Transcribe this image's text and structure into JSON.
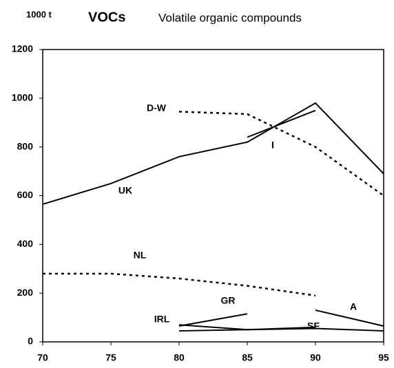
{
  "chart_data": {
    "type": "line",
    "title": "VOCs",
    "subtitle": "Volatile organic compounds",
    "y_label": "1000 t",
    "xlim": [
      70,
      95
    ],
    "xticks": [
      70,
      75,
      80,
      85,
      90,
      95
    ],
    "ylim": [
      0,
      1200
    ],
    "yticks": [
      0,
      200,
      400,
      600,
      800,
      1000,
      1200
    ],
    "series": [
      {
        "name": "UK",
        "color": "#000000",
        "style": "solid",
        "x": [
          70,
          75,
          80,
          85,
          90,
          95
        ],
        "values": [
          565,
          650,
          760,
          820,
          980,
          690
        ]
      },
      {
        "name": "D-W",
        "color": "#000000",
        "style": "dotted",
        "x": [
          80,
          85,
          90,
          95
        ],
        "values": [
          945,
          935,
          800,
          600
        ]
      },
      {
        "name": "I",
        "color": "#000000",
        "style": "solid",
        "x": [
          85,
          90
        ],
        "values": [
          840,
          950
        ]
      },
      {
        "name": "NL",
        "color": "#000000",
        "style": "dotted",
        "x": [
          70,
          75,
          80,
          85,
          90
        ],
        "values": [
          280,
          280,
          260,
          230,
          190
        ]
      },
      {
        "name": "GR",
        "color": "#000000",
        "style": "solid",
        "x": [
          80,
          85
        ],
        "values": [
          65,
          115
        ]
      },
      {
        "name": "IRL",
        "color": "#000000",
        "style": "solid",
        "x": [
          80,
          85,
          90
        ],
        "values": [
          70,
          50,
          60
        ]
      },
      {
        "name": "SF",
        "color": "#000000",
        "style": "solid",
        "x": [
          80,
          85,
          90,
          95
        ],
        "values": [
          45,
          50,
          55,
          45
        ]
      },
      {
        "name": "A",
        "color": "#000000",
        "style": "solid",
        "x": [
          90,
          95
        ],
        "values": [
          130,
          65
        ]
      }
    ]
  }
}
